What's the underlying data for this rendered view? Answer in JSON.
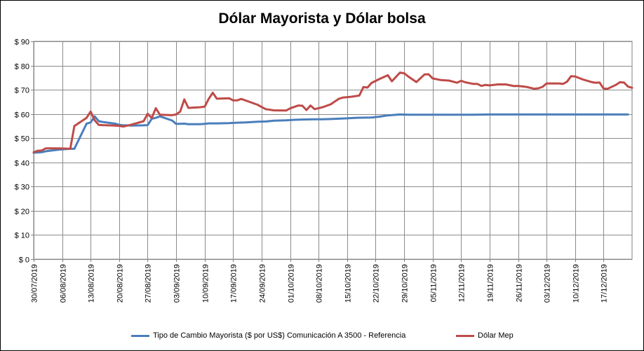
{
  "chart_data": {
    "type": "line",
    "title": "Dólar Mayorista y Dólar bolsa",
    "xlabel": "",
    "ylabel": "",
    "ylim": [
      0,
      90
    ],
    "y_ticks": [
      0,
      10,
      20,
      30,
      40,
      50,
      60,
      70,
      80,
      90
    ],
    "y_tick_labels": [
      "$ 0",
      "$ 10",
      "$ 20",
      "$ 30",
      "$ 40",
      "$ 50",
      "$ 60",
      "$ 70",
      "$ 80",
      "$ 90"
    ],
    "x_range": [
      "2019-07-30",
      "2019-12-24"
    ],
    "x_tick_labels": [
      "30/07/2019",
      "06/08/2019",
      "13/08/2019",
      "20/08/2019",
      "27/08/2019",
      "03/09/2019",
      "10/09/2019",
      "17/09/2019",
      "24/09/2019",
      "01/10/2019",
      "08/10/2019",
      "15/10/2019",
      "22/10/2019",
      "29/10/2019",
      "05/11/2019",
      "12/11/2019",
      "19/11/2019",
      "26/11/2019",
      "03/12/2019",
      "10/12/2019",
      "17/12/2019"
    ],
    "grid": true,
    "legend_position": "bottom",
    "series": [
      {
        "name": "Tipo de Cambio  Mayorista ($ por US$) Comunicación A 3500 - Referencia",
        "color": "#4a7ebb",
        "points": [
          [
            "2019-07-30",
            44.0
          ],
          [
            "2019-08-01",
            44.2
          ],
          [
            "2019-08-02",
            44.6
          ],
          [
            "2019-08-05",
            45.2
          ],
          [
            "2019-08-07",
            45.5
          ],
          [
            "2019-08-08",
            45.6
          ],
          [
            "2019-08-09",
            45.6
          ],
          [
            "2019-08-12",
            56.0
          ],
          [
            "2019-08-13",
            56.5
          ],
          [
            "2019-08-14",
            59.0
          ],
          [
            "2019-08-15",
            57.0
          ],
          [
            "2019-08-16",
            56.7
          ],
          [
            "2019-08-19",
            56.0
          ],
          [
            "2019-08-20",
            55.5
          ],
          [
            "2019-08-21",
            55.3
          ],
          [
            "2019-08-22",
            55.3
          ],
          [
            "2019-08-23",
            55.2
          ],
          [
            "2019-08-26",
            55.3
          ],
          [
            "2019-08-27",
            55.4
          ],
          [
            "2019-08-28",
            58.0
          ],
          [
            "2019-08-29",
            58.4
          ],
          [
            "2019-08-30",
            59.0
          ],
          [
            "2019-09-02",
            57.3
          ],
          [
            "2019-09-03",
            55.9
          ],
          [
            "2019-09-04",
            55.9
          ],
          [
            "2019-09-05",
            56.0
          ],
          [
            "2019-09-06",
            55.8
          ],
          [
            "2019-09-09",
            55.8
          ],
          [
            "2019-09-10",
            55.9
          ],
          [
            "2019-09-11",
            56.1
          ],
          [
            "2019-09-13",
            56.1
          ],
          [
            "2019-09-16",
            56.2
          ],
          [
            "2019-09-18",
            56.4
          ],
          [
            "2019-09-20",
            56.5
          ],
          [
            "2019-09-23",
            56.8
          ],
          [
            "2019-09-25",
            56.9
          ],
          [
            "2019-09-27",
            57.2
          ],
          [
            "2019-09-30",
            57.4
          ],
          [
            "2019-10-02",
            57.6
          ],
          [
            "2019-10-04",
            57.7
          ],
          [
            "2019-10-07",
            57.8
          ],
          [
            "2019-10-09",
            57.8
          ],
          [
            "2019-10-11",
            57.9
          ],
          [
            "2019-10-15",
            58.2
          ],
          [
            "2019-10-17",
            58.4
          ],
          [
            "2019-10-21",
            58.5
          ],
          [
            "2019-10-23",
            58.9
          ],
          [
            "2019-10-25",
            59.4
          ],
          [
            "2019-10-28",
            59.8
          ],
          [
            "2019-10-30",
            59.7
          ],
          [
            "2019-11-01",
            59.7
          ],
          [
            "2019-11-04",
            59.7
          ],
          [
            "2019-11-06",
            59.7
          ],
          [
            "2019-11-08",
            59.7
          ],
          [
            "2019-11-11",
            59.7
          ],
          [
            "2019-11-13",
            59.7
          ],
          [
            "2019-11-15",
            59.7
          ],
          [
            "2019-11-19",
            59.8
          ],
          [
            "2019-11-22",
            59.8
          ],
          [
            "2019-11-26",
            59.8
          ],
          [
            "2019-11-29",
            59.8
          ],
          [
            "2019-12-03",
            59.8
          ],
          [
            "2019-12-06",
            59.8
          ],
          [
            "2019-12-10",
            59.8
          ],
          [
            "2019-12-13",
            59.8
          ],
          [
            "2019-12-17",
            59.8
          ],
          [
            "2019-12-20",
            59.8
          ],
          [
            "2019-12-23",
            59.8
          ]
        ]
      },
      {
        "name": "Dólar Mep",
        "color": "#be4b48",
        "points": [
          [
            "2019-07-30",
            44.2
          ],
          [
            "2019-07-31",
            44.8
          ],
          [
            "2019-08-01",
            44.9
          ],
          [
            "2019-08-02",
            45.8
          ],
          [
            "2019-08-05",
            45.8
          ],
          [
            "2019-08-07",
            45.7
          ],
          [
            "2019-08-08",
            45.6
          ],
          [
            "2019-08-09",
            55.0
          ],
          [
            "2019-08-12",
            58.4
          ],
          [
            "2019-08-13",
            61.0
          ],
          [
            "2019-08-14",
            57.4
          ],
          [
            "2019-08-15",
            55.5
          ],
          [
            "2019-08-16",
            55.4
          ],
          [
            "2019-08-19",
            55.2
          ],
          [
            "2019-08-20",
            55.1
          ],
          [
            "2019-08-21",
            54.8
          ],
          [
            "2019-08-22",
            55.2
          ],
          [
            "2019-08-23",
            55.6
          ],
          [
            "2019-08-26",
            57.0
          ],
          [
            "2019-08-27",
            60.1
          ],
          [
            "2019-08-28",
            58.3
          ],
          [
            "2019-08-29",
            62.4
          ],
          [
            "2019-08-30",
            59.7
          ],
          [
            "2019-09-02",
            59.5
          ],
          [
            "2019-09-03",
            59.8
          ],
          [
            "2019-09-04",
            61.0
          ],
          [
            "2019-09-05",
            66.0
          ],
          [
            "2019-09-06",
            62.5
          ],
          [
            "2019-09-09",
            62.8
          ],
          [
            "2019-09-10",
            63.0
          ],
          [
            "2019-09-11",
            66.2
          ],
          [
            "2019-09-12",
            68.8
          ],
          [
            "2019-09-13",
            66.3
          ],
          [
            "2019-09-16",
            66.5
          ],
          [
            "2019-09-17",
            65.6
          ],
          [
            "2019-09-18",
            65.6
          ],
          [
            "2019-09-19",
            66.2
          ],
          [
            "2019-09-23",
            63.8
          ],
          [
            "2019-09-25",
            62.0
          ],
          [
            "2019-09-27",
            61.5
          ],
          [
            "2019-09-30",
            61.4
          ],
          [
            "2019-10-01",
            62.3
          ],
          [
            "2019-10-03",
            63.5
          ],
          [
            "2019-10-04",
            63.4
          ],
          [
            "2019-10-05",
            61.6
          ],
          [
            "2019-10-06",
            63.5
          ],
          [
            "2019-10-07",
            62.0
          ],
          [
            "2019-10-09",
            62.8
          ],
          [
            "2019-10-11",
            64.0
          ],
          [
            "2019-10-13",
            66.3
          ],
          [
            "2019-10-14",
            66.8
          ],
          [
            "2019-10-16",
            67.1
          ],
          [
            "2019-10-18",
            67.6
          ],
          [
            "2019-10-19",
            71.1
          ],
          [
            "2019-10-20",
            70.9
          ],
          [
            "2019-10-21",
            72.8
          ],
          [
            "2019-10-23",
            74.5
          ],
          [
            "2019-10-25",
            76.0
          ],
          [
            "2019-10-26",
            73.5
          ],
          [
            "2019-10-28",
            77.1
          ],
          [
            "2019-10-29",
            76.8
          ],
          [
            "2019-10-30",
            75.5
          ],
          [
            "2019-11-01",
            73.2
          ],
          [
            "2019-11-03",
            76.3
          ],
          [
            "2019-11-04",
            76.4
          ],
          [
            "2019-11-05",
            74.7
          ],
          [
            "2019-11-07",
            74.0
          ],
          [
            "2019-11-09",
            73.8
          ],
          [
            "2019-11-11",
            72.9
          ],
          [
            "2019-11-12",
            73.7
          ],
          [
            "2019-11-13",
            73.1
          ],
          [
            "2019-11-15",
            72.4
          ],
          [
            "2019-11-16",
            72.4
          ],
          [
            "2019-11-17",
            71.6
          ],
          [
            "2019-11-18",
            72.0
          ],
          [
            "2019-11-19",
            71.8
          ],
          [
            "2019-11-21",
            72.2
          ],
          [
            "2019-11-23",
            72.2
          ],
          [
            "2019-11-25",
            71.5
          ],
          [
            "2019-11-26",
            71.6
          ],
          [
            "2019-11-28",
            71.2
          ],
          [
            "2019-11-30",
            70.4
          ],
          [
            "2019-12-01",
            70.6
          ],
          [
            "2019-12-02",
            71.2
          ],
          [
            "2019-12-03",
            72.6
          ],
          [
            "2019-12-05",
            72.6
          ],
          [
            "2019-12-06",
            72.6
          ],
          [
            "2019-12-07",
            72.4
          ],
          [
            "2019-12-08",
            73.3
          ],
          [
            "2019-12-09",
            75.6
          ],
          [
            "2019-12-10",
            75.5
          ],
          [
            "2019-12-12",
            74.2
          ],
          [
            "2019-12-14",
            73.2
          ],
          [
            "2019-12-15",
            72.9
          ],
          [
            "2019-12-16",
            73.0
          ],
          [
            "2019-12-17",
            70.5
          ],
          [
            "2019-12-18",
            70.4
          ],
          [
            "2019-12-20",
            72.0
          ],
          [
            "2019-12-21",
            73.1
          ],
          [
            "2019-12-22",
            73.0
          ],
          [
            "2019-12-23",
            71.3
          ],
          [
            "2019-12-24",
            70.8
          ]
        ]
      }
    ]
  }
}
